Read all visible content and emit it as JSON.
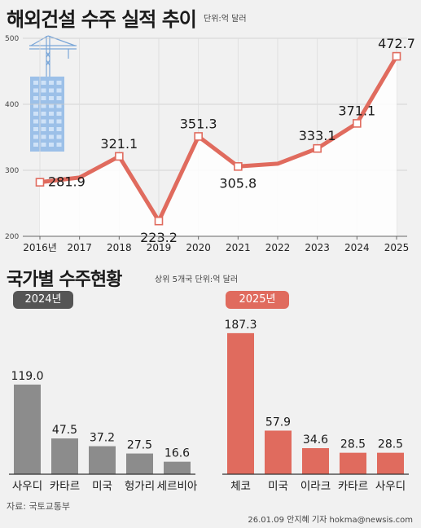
{
  "header": {
    "title": "해외건설 수주 실적 추이",
    "unit": "단위:억 달러"
  },
  "section2": {
    "title": "국가별 수주현황",
    "unit": "상위 5개국 단위:억 달러",
    "badge_2024": "2024년",
    "badge_2025": "2025년"
  },
  "footer": {
    "source": "자료: 국토교통부",
    "credit": "26.01.09 안지혜 기자 hokma@newsis.com"
  },
  "colors": {
    "accent": "#e06b5e",
    "gray_bar": "#8c8c8c",
    "area_fill": "#ffffff"
  },
  "chart_data": [
    {
      "type": "line",
      "title": "해외건설 수주 실적 추이",
      "unit": "단위:억 달러",
      "categories": [
        "2016년",
        "2017",
        "2018",
        "2019",
        "2020",
        "2021",
        "2022",
        "2023",
        "2024",
        "2025"
      ],
      "values": [
        281.9,
        289,
        321.1,
        223.2,
        351.3,
        305.8,
        310,
        333.1,
        371.1,
        472.7
      ],
      "labels": [
        "281.9",
        "",
        "321.1",
        "223.2",
        "351.3",
        "305.8",
        "",
        "333.1",
        "371.1",
        "472.7"
      ],
      "yticks": [
        "200",
        "300",
        "400",
        "500"
      ],
      "ylim": [
        200,
        500
      ],
      "grid": true
    },
    {
      "type": "bar",
      "name": "2024년",
      "categories": [
        "사우디",
        "카타르",
        "미국",
        "헝가리",
        "세르비아"
      ],
      "values": [
        119.0,
        47.5,
        37.2,
        27.5,
        16.6
      ],
      "labels": [
        "119.0",
        "47.5",
        "37.2",
        "27.5",
        "16.6"
      ]
    },
    {
      "type": "bar",
      "name": "2025년",
      "categories": [
        "체코",
        "미국",
        "이라크",
        "카타르",
        "사우디"
      ],
      "values": [
        187.3,
        57.9,
        34.6,
        28.5,
        28.5
      ],
      "labels": [
        "187.3",
        "57.9",
        "34.6",
        "28.5",
        "28.5"
      ]
    }
  ]
}
